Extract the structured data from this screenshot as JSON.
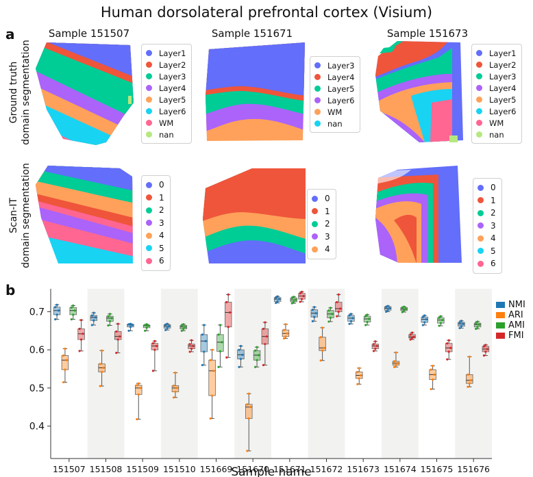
{
  "title": "Human dorsolateral prefrontal cortex (Visium)",
  "panels": {
    "a": "a",
    "b": "b"
  },
  "samples": [
    "Sample 151507",
    "Sample 151671",
    "Sample 151673"
  ],
  "row_labels": {
    "ground_truth": [
      "Ground truth",
      "domain segmentation"
    ],
    "scanit": [
      "Scan-IT",
      "domain segmentation"
    ]
  },
  "legends": {
    "gt_151507": [
      {
        "label": "Layer1",
        "color": "#636efa"
      },
      {
        "label": "Layer2",
        "color": "#ef553b"
      },
      {
        "label": "Layer3",
        "color": "#00cc96"
      },
      {
        "label": "Layer4",
        "color": "#ab63fa"
      },
      {
        "label": "Layer5",
        "color": "#ffa15a"
      },
      {
        "label": "Layer6",
        "color": "#19d3f3"
      },
      {
        "label": "WM",
        "color": "#ff6692"
      },
      {
        "label": "nan",
        "color": "#b6e880"
      }
    ],
    "gt_151671": [
      {
        "label": "Layer3",
        "color": "#636efa"
      },
      {
        "label": "Layer4",
        "color": "#ef553b"
      },
      {
        "label": "Layer5",
        "color": "#00cc96"
      },
      {
        "label": "Layer6",
        "color": "#ab63fa"
      },
      {
        "label": "WM",
        "color": "#ffa15a"
      },
      {
        "label": "nan",
        "color": "#19d3f3"
      }
    ],
    "gt_151673": [
      {
        "label": "Layer1",
        "color": "#636efa"
      },
      {
        "label": "Layer2",
        "color": "#ef553b"
      },
      {
        "label": "Layer3",
        "color": "#00cc96"
      },
      {
        "label": "Layer4",
        "color": "#ab63fa"
      },
      {
        "label": "Layer5",
        "color": "#ffa15a"
      },
      {
        "label": "Layer6",
        "color": "#19d3f3"
      },
      {
        "label": "WM",
        "color": "#ff6692"
      },
      {
        "label": "nan",
        "color": "#b6e880"
      }
    ],
    "scan_151507": [
      {
        "label": "0",
        "color": "#636efa"
      },
      {
        "label": "1",
        "color": "#ef553b"
      },
      {
        "label": "2",
        "color": "#00cc96"
      },
      {
        "label": "3",
        "color": "#ab63fa"
      },
      {
        "label": "4",
        "color": "#ffa15a"
      },
      {
        "label": "5",
        "color": "#19d3f3"
      },
      {
        "label": "6",
        "color": "#ff6692"
      }
    ],
    "scan_151671": [
      {
        "label": "0",
        "color": "#636efa"
      },
      {
        "label": "1",
        "color": "#ef553b"
      },
      {
        "label": "2",
        "color": "#00cc96"
      },
      {
        "label": "3",
        "color": "#ab63fa"
      },
      {
        "label": "4",
        "color": "#ffa15a"
      }
    ],
    "scan_151673": [
      {
        "label": "0",
        "color": "#636efa"
      },
      {
        "label": "1",
        "color": "#ef553b"
      },
      {
        "label": "2",
        "color": "#00cc96"
      },
      {
        "label": "3",
        "color": "#ab63fa"
      },
      {
        "label": "4",
        "color": "#ffa15a"
      },
      {
        "label": "5",
        "color": "#19d3f3"
      },
      {
        "label": "6",
        "color": "#ff6692"
      }
    ]
  },
  "chart_data": {
    "type": "box",
    "xlabel": "Sample name",
    "ylabel": "",
    "ylim": [
      0.315,
      0.76
    ],
    "yticks": [
      0.4,
      0.5,
      0.6,
      0.7
    ],
    "shaded_alternate_columns": true,
    "legend_position": "right",
    "categories": [
      "151507",
      "151508",
      "151509",
      "151510",
      "151669",
      "151670",
      "151671",
      "151672",
      "151673",
      "151674",
      "151675",
      "151676"
    ],
    "series": [
      {
        "name": "NMI",
        "color": "#1f77b4",
        "boxes": [
          {
            "min": 0.68,
            "q1": 0.692,
            "median": 0.703,
            "q3": 0.712,
            "max": 0.718
          },
          {
            "min": 0.665,
            "q1": 0.677,
            "median": 0.685,
            "q3": 0.69,
            "max": 0.697
          },
          {
            "min": 0.65,
            "q1": 0.66,
            "median": 0.665,
            "q3": 0.667,
            "max": 0.668
          },
          {
            "min": 0.652,
            "q1": 0.657,
            "median": 0.662,
            "q3": 0.666,
            "max": 0.668
          },
          {
            "min": 0.56,
            "q1": 0.595,
            "median": 0.623,
            "q3": 0.64,
            "max": 0.665
          },
          {
            "min": 0.555,
            "q1": 0.576,
            "median": 0.587,
            "q3": 0.6,
            "max": 0.61
          },
          {
            "min": 0.723,
            "q1": 0.727,
            "median": 0.733,
            "q3": 0.737,
            "max": 0.74
          },
          {
            "min": 0.675,
            "q1": 0.686,
            "median": 0.696,
            "q3": 0.705,
            "max": 0.712
          },
          {
            "min": 0.668,
            "q1": 0.675,
            "median": 0.683,
            "q3": 0.69,
            "max": 0.694
          },
          {
            "min": 0.7,
            "q1": 0.704,
            "median": 0.709,
            "q3": 0.713,
            "max": 0.715
          },
          {
            "min": 0.665,
            "q1": 0.672,
            "median": 0.68,
            "q3": 0.686,
            "max": 0.69
          },
          {
            "min": 0.657,
            "q1": 0.662,
            "median": 0.668,
            "q3": 0.672,
            "max": 0.676
          }
        ]
      },
      {
        "name": "ARI",
        "color": "#ff7f0e",
        "boxes": [
          {
            "min": 0.515,
            "q1": 0.548,
            "median": 0.573,
            "q3": 0.585,
            "max": 0.603
          },
          {
            "min": 0.505,
            "q1": 0.542,
            "median": 0.553,
            "q3": 0.563,
            "max": 0.598
          },
          {
            "min": 0.418,
            "q1": 0.483,
            "median": 0.5,
            "q3": 0.507,
            "max": 0.512
          },
          {
            "min": 0.475,
            "q1": 0.49,
            "median": 0.5,
            "q3": 0.506,
            "max": 0.54
          },
          {
            "min": 0.42,
            "q1": 0.48,
            "median": 0.545,
            "q3": 0.573,
            "max": 0.6
          },
          {
            "min": 0.335,
            "q1": 0.42,
            "median": 0.45,
            "q3": 0.457,
            "max": 0.485
          },
          {
            "min": 0.63,
            "q1": 0.635,
            "median": 0.643,
            "q3": 0.652,
            "max": 0.667
          },
          {
            "min": 0.572,
            "q1": 0.598,
            "median": 0.605,
            "q3": 0.633,
            "max": 0.658
          },
          {
            "min": 0.51,
            "q1": 0.525,
            "median": 0.533,
            "q3": 0.542,
            "max": 0.552
          },
          {
            "min": 0.555,
            "q1": 0.56,
            "median": 0.565,
            "q3": 0.57,
            "max": 0.593
          },
          {
            "min": 0.497,
            "q1": 0.522,
            "median": 0.535,
            "q3": 0.548,
            "max": 0.558
          },
          {
            "min": 0.503,
            "q1": 0.512,
            "median": 0.52,
            "q3": 0.535,
            "max": 0.582
          }
        ]
      },
      {
        "name": "AMI",
        "color": "#2ca02c",
        "boxes": [
          {
            "min": 0.68,
            "q1": 0.692,
            "median": 0.703,
            "q3": 0.711,
            "max": 0.716
          },
          {
            "min": 0.664,
            "q1": 0.675,
            "median": 0.683,
            "q3": 0.688,
            "max": 0.694
          },
          {
            "min": 0.65,
            "q1": 0.658,
            "median": 0.663,
            "q3": 0.665,
            "max": 0.667
          },
          {
            "min": 0.65,
            "q1": 0.655,
            "median": 0.66,
            "q3": 0.664,
            "max": 0.667
          },
          {
            "min": 0.555,
            "q1": 0.596,
            "median": 0.62,
            "q3": 0.64,
            "max": 0.665
          },
          {
            "min": 0.555,
            "q1": 0.573,
            "median": 0.586,
            "q3": 0.598,
            "max": 0.607
          },
          {
            "min": 0.722,
            "q1": 0.726,
            "median": 0.731,
            "q3": 0.736,
            "max": 0.739
          },
          {
            "min": 0.674,
            "q1": 0.684,
            "median": 0.694,
            "q3": 0.703,
            "max": 0.71
          },
          {
            "min": 0.665,
            "q1": 0.673,
            "median": 0.681,
            "q3": 0.688,
            "max": 0.692
          },
          {
            "min": 0.699,
            "q1": 0.703,
            "median": 0.707,
            "q3": 0.711,
            "max": 0.713
          },
          {
            "min": 0.663,
            "q1": 0.67,
            "median": 0.678,
            "q3": 0.684,
            "max": 0.688
          },
          {
            "min": 0.655,
            "q1": 0.66,
            "median": 0.666,
            "q3": 0.67,
            "max": 0.674
          }
        ]
      },
      {
        "name": "FMI",
        "color": "#d62728",
        "boxes": [
          {
            "min": 0.597,
            "q1": 0.627,
            "median": 0.642,
            "q3": 0.655,
            "max": 0.678
          },
          {
            "min": 0.592,
            "q1": 0.627,
            "median": 0.635,
            "q3": 0.648,
            "max": 0.668
          },
          {
            "min": 0.545,
            "q1": 0.6,
            "median": 0.61,
            "q3": 0.617,
            "max": 0.623
          },
          {
            "min": 0.595,
            "q1": 0.603,
            "median": 0.61,
            "q3": 0.615,
            "max": 0.625
          },
          {
            "min": 0.58,
            "q1": 0.66,
            "median": 0.698,
            "q3": 0.725,
            "max": 0.745
          },
          {
            "min": 0.56,
            "q1": 0.615,
            "median": 0.635,
            "q3": 0.655,
            "max": 0.672
          },
          {
            "min": 0.726,
            "q1": 0.733,
            "median": 0.741,
            "q3": 0.748,
            "max": 0.752
          },
          {
            "min": 0.688,
            "q1": 0.7,
            "median": 0.708,
            "q3": 0.725,
            "max": 0.745
          },
          {
            "min": 0.597,
            "q1": 0.603,
            "median": 0.61,
            "q3": 0.615,
            "max": 0.622
          },
          {
            "min": 0.627,
            "q1": 0.631,
            "median": 0.634,
            "q3": 0.64,
            "max": 0.645
          },
          {
            "min": 0.575,
            "q1": 0.595,
            "median": 0.605,
            "q3": 0.617,
            "max": 0.625
          },
          {
            "min": 0.585,
            "q1": 0.595,
            "median": 0.602,
            "q3": 0.609,
            "max": 0.613
          }
        ]
      }
    ]
  }
}
